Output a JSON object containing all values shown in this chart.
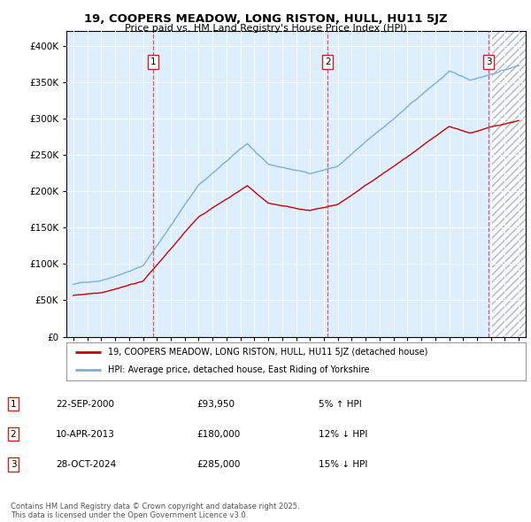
{
  "title": "19, COOPERS MEADOW, LONG RISTON, HULL, HU11 5JZ",
  "subtitle": "Price paid vs. HM Land Registry's House Price Index (HPI)",
  "background_color": "#ffffff",
  "plot_bg_color": "#ddeeff",
  "hpi_color": "#7ab0d4",
  "price_color": "#cc0000",
  "sale1_date": 2000.73,
  "sale1_price": 93950,
  "sale2_date": 2013.27,
  "sale2_price": 180000,
  "sale3_date": 2024.83,
  "sale3_price": 285000,
  "ylim_min": 0,
  "ylim_max": 420000,
  "xlim_min": 1994.5,
  "xlim_max": 2027.5,
  "future_start": 2025.0,
  "legend_label_price": "19, COOPERS MEADOW, LONG RISTON, HULL, HU11 5JZ (detached house)",
  "legend_label_hpi": "HPI: Average price, detached house, East Riding of Yorkshire",
  "table_rows": [
    {
      "num": "1",
      "date": "22-SEP-2000",
      "price": "£93,950",
      "change": "5% ↑ HPI"
    },
    {
      "num": "2",
      "date": "10-APR-2013",
      "price": "£180,000",
      "change": "12% ↓ HPI"
    },
    {
      "num": "3",
      "date": "28-OCT-2024",
      "price": "£285,000",
      "change": "15% ↓ HPI"
    }
  ],
  "footnote": "Contains HM Land Registry data © Crown copyright and database right 2025.\nThis data is licensed under the Open Government Licence v3.0."
}
